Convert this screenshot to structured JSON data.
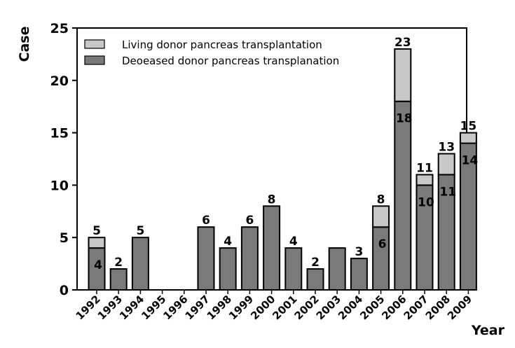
{
  "chart_data": {
    "type": "bar",
    "stacked": true,
    "ylabel": "Case",
    "xlabel": "Year",
    "ylim": [
      0,
      25
    ],
    "yticks": [
      0,
      5,
      10,
      15,
      20,
      25
    ],
    "grid": false,
    "legend_position": "top-left",
    "categories": [
      "1992",
      "1993",
      "1994",
      "1995",
      "1996",
      "1997",
      "1998",
      "1999",
      "2000",
      "2001",
      "2002",
      "2003",
      "2004",
      "2005",
      "2006",
      "2007",
      "2008",
      "2009"
    ],
    "series": [
      {
        "name": "Deoeased donor pancreas transplanation",
        "color": "#7a7a7a",
        "values": [
          4,
          2,
          5,
          0,
          0,
          6,
          4,
          6,
          8,
          4,
          2,
          4,
          3,
          6,
          18,
          10,
          11,
          14
        ]
      },
      {
        "name": "Living donor pancreas transplantation",
        "color": "#c8c8c8",
        "values": [
          1,
          0,
          0,
          0,
          0,
          0,
          0,
          0,
          0,
          0,
          0,
          0,
          0,
          2,
          5,
          1,
          2,
          1
        ]
      }
    ],
    "total_labels": [
      "5",
      "2",
      "5",
      "",
      "",
      "6",
      "4",
      "6",
      "8",
      "4",
      "2",
      "",
      "3",
      "8",
      "23",
      "11",
      "13",
      "15"
    ],
    "inner_labels": [
      "4",
      "",
      "",
      "",
      "",
      "",
      "",
      "",
      "",
      "",
      "",
      "",
      "",
      "6",
      "18",
      "10",
      "11",
      "14"
    ]
  }
}
